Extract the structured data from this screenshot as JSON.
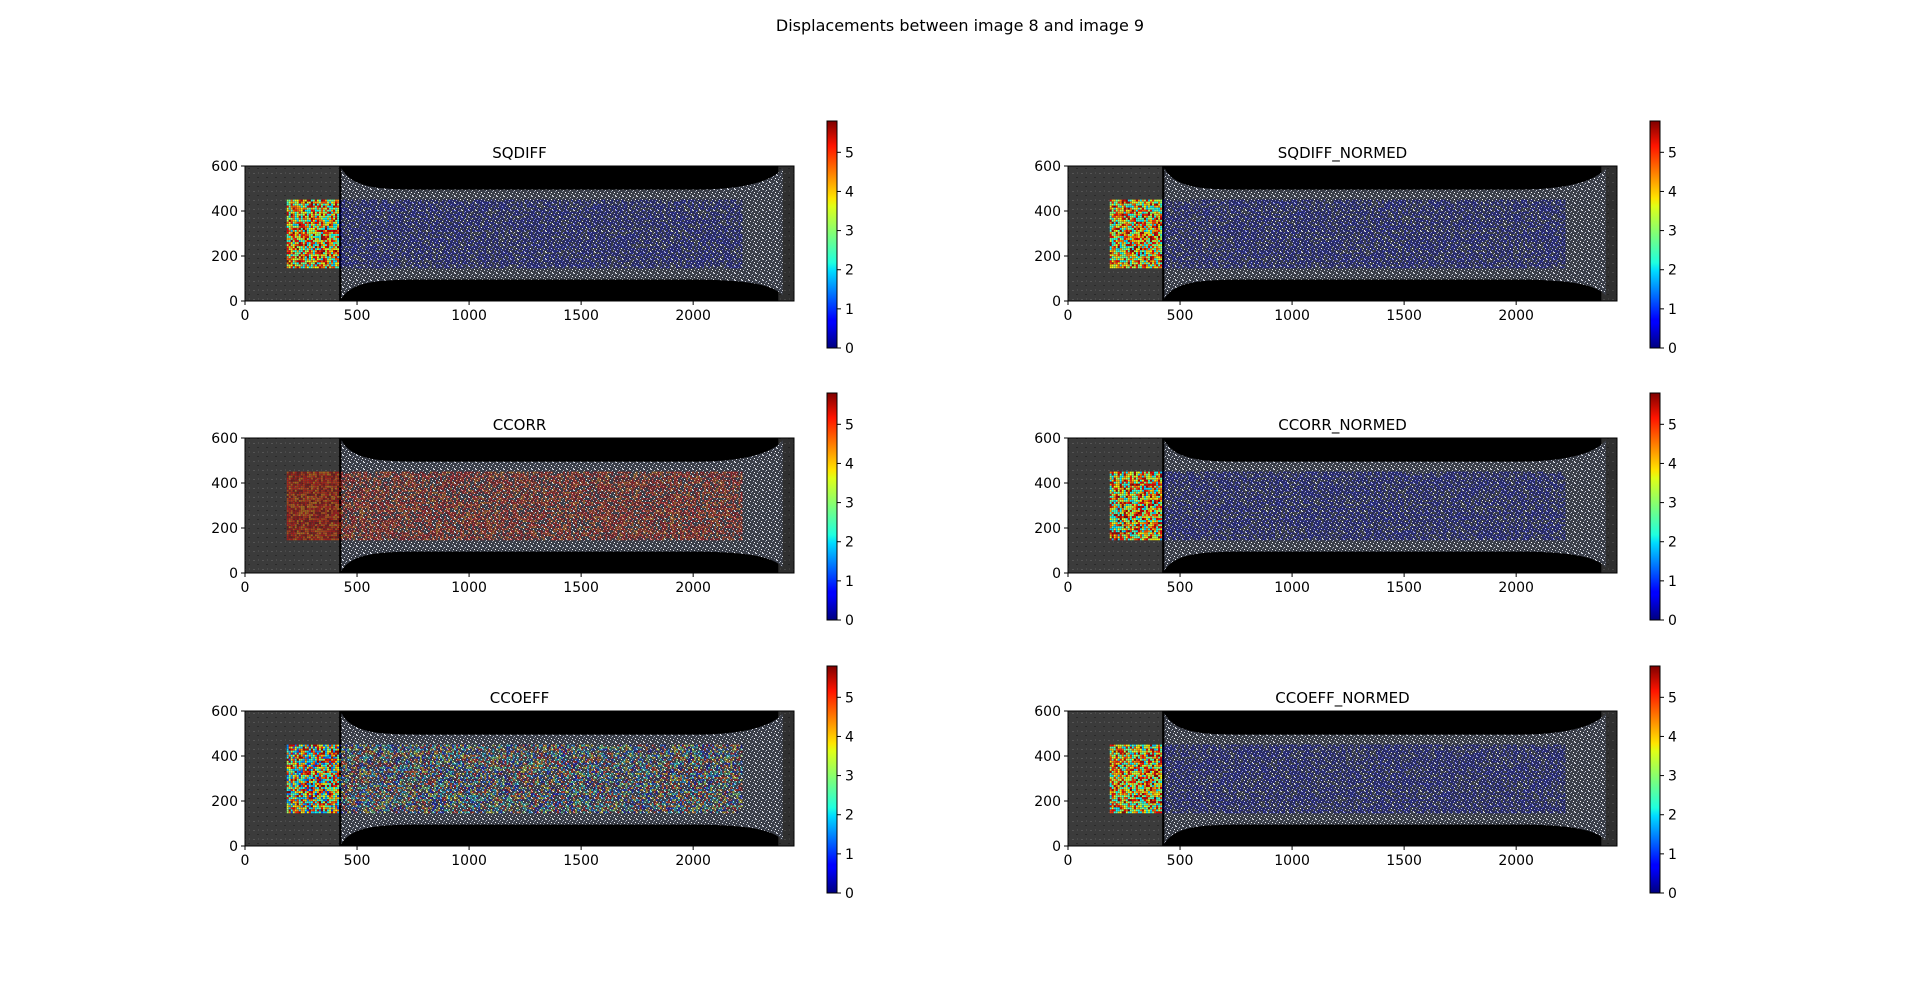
{
  "figure": {
    "suptitle": "Displacements between image 8 and image 9"
  },
  "colors": {
    "background": "#000000",
    "specimen_speckle": "#b8bcc6",
    "colormap": "jet"
  },
  "chart_data": [
    {
      "type": "heatmap",
      "title": "SQDIFF",
      "xlim": [
        0,
        2450
      ],
      "ylim": [
        0,
        600
      ],
      "xticks": [
        0,
        500,
        1000,
        1500,
        2000
      ],
      "yticks": [
        0,
        200,
        400,
        600
      ],
      "colorbar": {
        "range": [
          0,
          5.8
        ],
        "ticks": [
          0,
          1,
          2,
          3,
          4,
          5
        ],
        "colormap": "jet"
      },
      "roi": {
        "x": [
          190,
          2220
        ],
        "y": [
          150,
          450
        ]
      },
      "displacement_pattern": "noisy high values (2-5.8) at left grip region x 190-420, near-zero elsewhere"
    },
    {
      "type": "heatmap",
      "title": "SQDIFF_NORMED",
      "xlim": [
        0,
        2450
      ],
      "ylim": [
        0,
        600
      ],
      "xticks": [
        0,
        500,
        1000,
        1500,
        2000
      ],
      "yticks": [
        0,
        200,
        400,
        600
      ],
      "colorbar": {
        "range": [
          0,
          5.8
        ],
        "ticks": [
          0,
          1,
          2,
          3,
          4,
          5
        ],
        "colormap": "jet"
      },
      "roi": {
        "x": [
          190,
          2220
        ],
        "y": [
          150,
          450
        ]
      },
      "displacement_pattern": "noisy high values (2-5.8) at left grip region x 190-420, near-zero elsewhere"
    },
    {
      "type": "heatmap",
      "title": "CCORR",
      "xlim": [
        0,
        2450
      ],
      "ylim": [
        0,
        600
      ],
      "xticks": [
        0,
        500,
        1000,
        1500,
        2000
      ],
      "yticks": [
        0,
        200,
        400,
        600
      ],
      "colorbar": {
        "range": [
          0,
          5.8
        ],
        "ticks": [
          0,
          1,
          2,
          3,
          4,
          5
        ],
        "colormap": "jet"
      },
      "roi": {
        "x": [
          190,
          2220
        ],
        "y": [
          150,
          450
        ]
      },
      "displacement_pattern": "high values (4-5.8) across whole ROI x 190-2220"
    },
    {
      "type": "heatmap",
      "title": "CCORR_NORMED",
      "xlim": [
        0,
        2450
      ],
      "ylim": [
        0,
        600
      ],
      "xticks": [
        0,
        500,
        1000,
        1500,
        2000
      ],
      "yticks": [
        0,
        200,
        400,
        600
      ],
      "colorbar": {
        "range": [
          0,
          5.8
        ],
        "ticks": [
          0,
          1,
          2,
          3,
          4,
          5
        ],
        "colormap": "jet"
      },
      "roi": {
        "x": [
          190,
          2220
        ],
        "y": [
          150,
          450
        ]
      },
      "displacement_pattern": "noisy high values (2-5.8) at left grip region x 190-420, near-zero elsewhere"
    },
    {
      "type": "heatmap",
      "title": "CCOEFF",
      "xlim": [
        0,
        2450
      ],
      "ylim": [
        0,
        600
      ],
      "xticks": [
        0,
        500,
        1000,
        1500,
        2000
      ],
      "yticks": [
        0,
        200,
        400,
        600
      ],
      "colorbar": {
        "range": [
          0,
          5.8
        ],
        "ticks": [
          0,
          1,
          2,
          3,
          4,
          5
        ],
        "colormap": "jet"
      },
      "roi": {
        "x": [
          190,
          2220
        ],
        "y": [
          150,
          450
        ]
      },
      "displacement_pattern": "noisy mixed values (0-5.8) across whole ROI, strongest at left grip x 190-420"
    },
    {
      "type": "heatmap",
      "title": "CCOEFF_NORMED",
      "xlim": [
        0,
        2450
      ],
      "ylim": [
        0,
        600
      ],
      "xticks": [
        0,
        500,
        1000,
        1500,
        2000
      ],
      "yticks": [
        0,
        200,
        400,
        600
      ],
      "colorbar": {
        "range": [
          0,
          5.8
        ],
        "ticks": [
          0,
          1,
          2,
          3,
          4,
          5
        ],
        "colormap": "jet"
      },
      "roi": {
        "x": [
          190,
          2220
        ],
        "y": [
          150,
          450
        ]
      },
      "displacement_pattern": "noisy high values (2-5.8) at left grip region x 190-420, near-zero elsewhere"
    }
  ]
}
